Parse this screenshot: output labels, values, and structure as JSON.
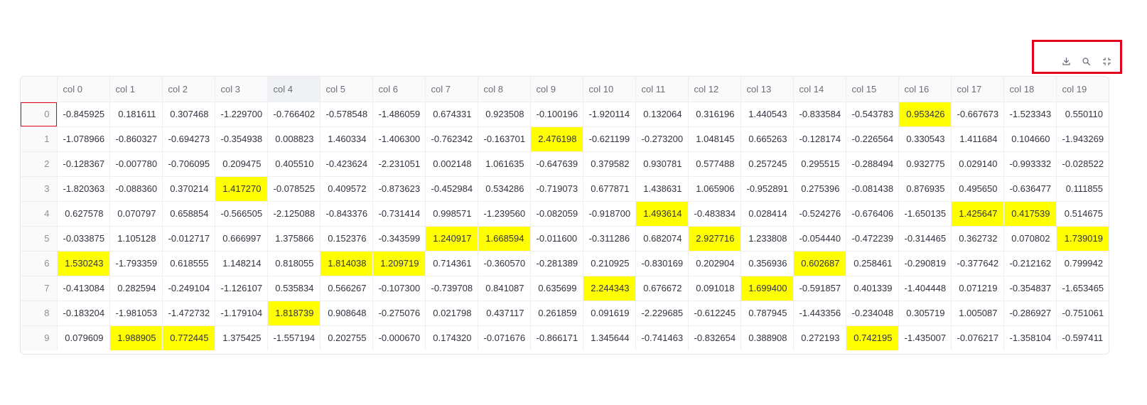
{
  "toolbar": {
    "buttons": [
      {
        "name": "download-button",
        "icon": "download-icon"
      },
      {
        "name": "search-button",
        "icon": "search-icon"
      },
      {
        "name": "fullscreen-button",
        "icon": "fullscreen-icon"
      }
    ]
  },
  "table": {
    "columns": [
      "col 0",
      "col 1",
      "col 2",
      "col 3",
      "col 4",
      "col 5",
      "col 6",
      "col 7",
      "col 8",
      "col 9",
      "col 10",
      "col 11",
      "col 12",
      "col 13",
      "col 14",
      "col 15",
      "col 16",
      "col 17",
      "col 18",
      "col 19"
    ],
    "rows": [
      {
        "index": "0",
        "cells": [
          "-0.845925",
          "0.181611",
          "0.307468",
          "-1.229700",
          "-0.766402",
          "-0.578548",
          "-1.486059",
          "0.674331",
          "0.923508",
          "-0.100196",
          "-1.920114",
          "0.132064",
          "0.316196",
          "1.440543",
          "-0.833584",
          "-0.543783",
          "0.953426",
          "-0.667673",
          "-1.523343",
          "0.550110"
        ],
        "highlight": [
          16
        ]
      },
      {
        "index": "1",
        "cells": [
          "-1.078966",
          "-0.860327",
          "-0.694273",
          "-0.354938",
          "0.008823",
          "1.460334",
          "-1.406300",
          "-0.762342",
          "-0.163701",
          "2.476198",
          "-0.621199",
          "-0.273200",
          "1.048145",
          "0.665263",
          "-0.128174",
          "-0.226564",
          "0.330543",
          "1.411684",
          "0.104660",
          "-1.943269"
        ],
        "highlight": [
          9
        ]
      },
      {
        "index": "2",
        "cells": [
          "-0.128367",
          "-0.007780",
          "-0.706095",
          "0.209475",
          "0.405510",
          "-0.423624",
          "-2.231051",
          "0.002148",
          "1.061635",
          "-0.647639",
          "0.379582",
          "0.930781",
          "0.577488",
          "0.257245",
          "0.295515",
          "-0.288494",
          "0.932775",
          "0.029140",
          "-0.993332",
          "-0.028522"
        ],
        "highlight": []
      },
      {
        "index": "3",
        "cells": [
          "-1.820363",
          "-0.088360",
          "0.370214",
          "1.417270",
          "-0.078525",
          "0.409572",
          "-0.873623",
          "-0.452984",
          "0.534286",
          "-0.719073",
          "0.677871",
          "1.438631",
          "1.065906",
          "-0.952891",
          "0.275396",
          "-0.081438",
          "0.876935",
          "0.495650",
          "-0.636477",
          "0.111855"
        ],
        "highlight": [
          3
        ]
      },
      {
        "index": "4",
        "cells": [
          "0.627578",
          "0.070797",
          "0.658854",
          "-0.566505",
          "-2.125088",
          "-0.843376",
          "-0.731414",
          "0.998571",
          "-1.239560",
          "-0.082059",
          "-0.918700",
          "1.493614",
          "-0.483834",
          "0.028414",
          "-0.524276",
          "-0.676406",
          "-1.650135",
          "1.425647",
          "0.417539",
          "0.514675"
        ],
        "highlight": [
          11,
          17,
          18
        ]
      },
      {
        "index": "5",
        "cells": [
          "-0.033875",
          "1.105128",
          "-0.012717",
          "0.666997",
          "1.375866",
          "0.152376",
          "-0.343599",
          "1.240917",
          "1.668594",
          "-0.011600",
          "-0.311286",
          "0.682074",
          "2.927716",
          "1.233808",
          "-0.054440",
          "-0.472239",
          "-0.314465",
          "0.362732",
          "0.070802",
          "1.739019"
        ],
        "highlight": [
          7,
          8,
          12,
          19
        ]
      },
      {
        "index": "6",
        "cells": [
          "1.530243",
          "-1.793359",
          "0.618555",
          "1.148214",
          "0.818055",
          "1.814038",
          "1.209719",
          "0.714361",
          "-0.360570",
          "-0.281389",
          "0.210925",
          "-0.830169",
          "0.202904",
          "0.356936",
          "0.602687",
          "0.258461",
          "-0.290819",
          "-0.377642",
          "-0.212162",
          "0.799942"
        ],
        "highlight": [
          0,
          5,
          6,
          14
        ]
      },
      {
        "index": "7",
        "cells": [
          "-0.413084",
          "0.282594",
          "-0.249104",
          "-1.126107",
          "0.535834",
          "0.566267",
          "-0.107300",
          "-0.739708",
          "0.841087",
          "0.635699",
          "2.244343",
          "0.676672",
          "0.091018",
          "1.699400",
          "-0.591857",
          "0.401339",
          "-1.404448",
          "0.071219",
          "-0.354837",
          "-1.653465"
        ],
        "highlight": [
          10,
          13
        ]
      },
      {
        "index": "8",
        "cells": [
          "-0.183204",
          "-1.981053",
          "-1.472732",
          "-1.179104",
          "1.818739",
          "0.908648",
          "-0.275076",
          "0.021798",
          "0.437117",
          "0.261859",
          "0.091619",
          "-2.229685",
          "-0.612245",
          "0.787945",
          "-1.443356",
          "-0.234048",
          "0.305719",
          "1.005087",
          "-0.286927",
          "-0.751061"
        ],
        "highlight": [
          4
        ]
      },
      {
        "index": "9",
        "cells": [
          "0.079609",
          "1.988905",
          "0.772445",
          "1.375425",
          "-1.557194",
          "0.202755",
          "-0.000670",
          "0.174320",
          "-0.071676",
          "-0.866171",
          "1.345644",
          "-0.741463",
          "-0.832654",
          "0.388908",
          "0.272193",
          "0.742195",
          "-1.435007",
          "-0.076217",
          "-1.358104",
          "-0.597411"
        ],
        "highlight": [
          1,
          2,
          15
        ]
      }
    ],
    "hovered_column": 4,
    "selected_row_index": 0
  },
  "colors": {
    "highlight": "#ffff00",
    "selection": "#e0001b"
  }
}
